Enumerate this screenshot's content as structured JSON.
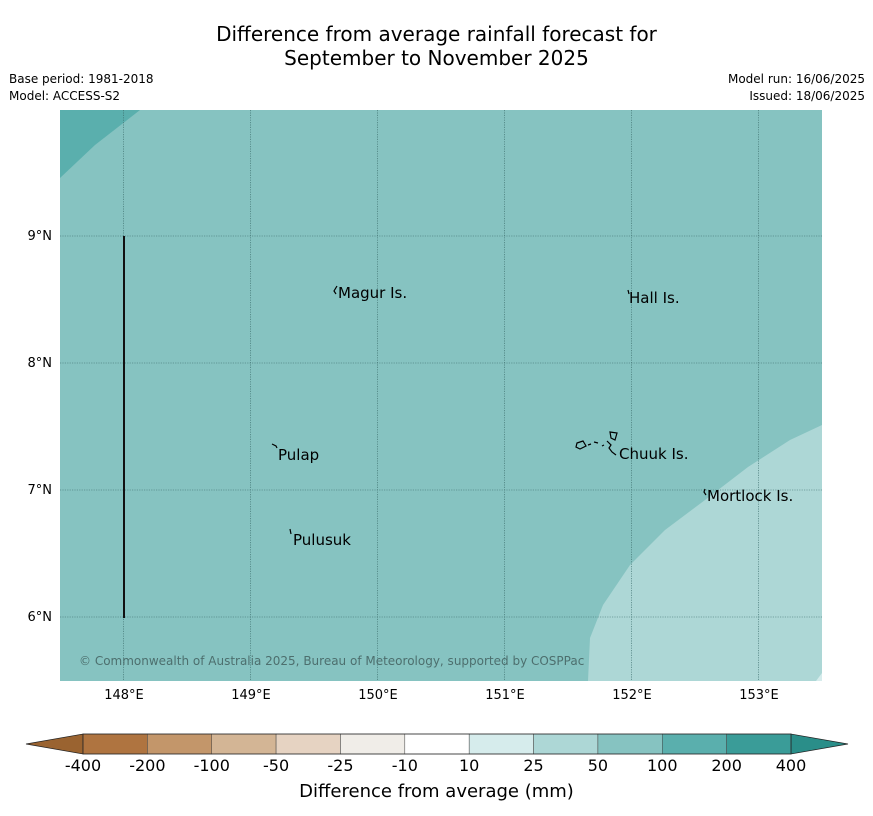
{
  "title": {
    "line1": "Difference from average rainfall forecast for",
    "line2": "September to November 2025"
  },
  "meta": {
    "base_period": "Base period: 1981-2018",
    "model": "Model: ACCESS-S2",
    "model_run": "Model run: 16/06/2025",
    "issued": "Issued: 18/06/2025"
  },
  "map": {
    "lat_labels": [
      "9°N",
      "8°N",
      "7°N",
      "6°N"
    ],
    "lon_labels": [
      "148°E",
      "149°E",
      "150°E",
      "151°E",
      "152°E",
      "153°E"
    ],
    "places": [
      {
        "name": "Magur Is."
      },
      {
        "name": "Hall Is."
      },
      {
        "name": "Pulap"
      },
      {
        "name": "Chuuk Is."
      },
      {
        "name": "Mortlock Is."
      },
      {
        "name": "Pulusuk"
      }
    ],
    "copyright": "© Commonwealth of Australia 2025, Bureau of Meteorology, supported by COSPPac",
    "colors": {
      "50_to_100": "#86c3c1",
      "100_to_200": "#5aafad",
      "25_to_50": "#add7d6"
    }
  },
  "colorbar": {
    "title": "Difference from average (mm)",
    "tick_labels": [
      "-400",
      "-200",
      "-100",
      "-50",
      "-25",
      "-10",
      "10",
      "25",
      "50",
      "100",
      "200",
      "400"
    ],
    "colors": [
      "#af7440",
      "#c3966a",
      "#d3b595",
      "#e6d3c2",
      "#f0ede8",
      "#ffffff",
      "#d6ecec",
      "#add7d6",
      "#86c3c1",
      "#5aafad",
      "#3a9c98"
    ],
    "under_color": "#9a6330",
    "over_color": "#2a8e89"
  }
}
